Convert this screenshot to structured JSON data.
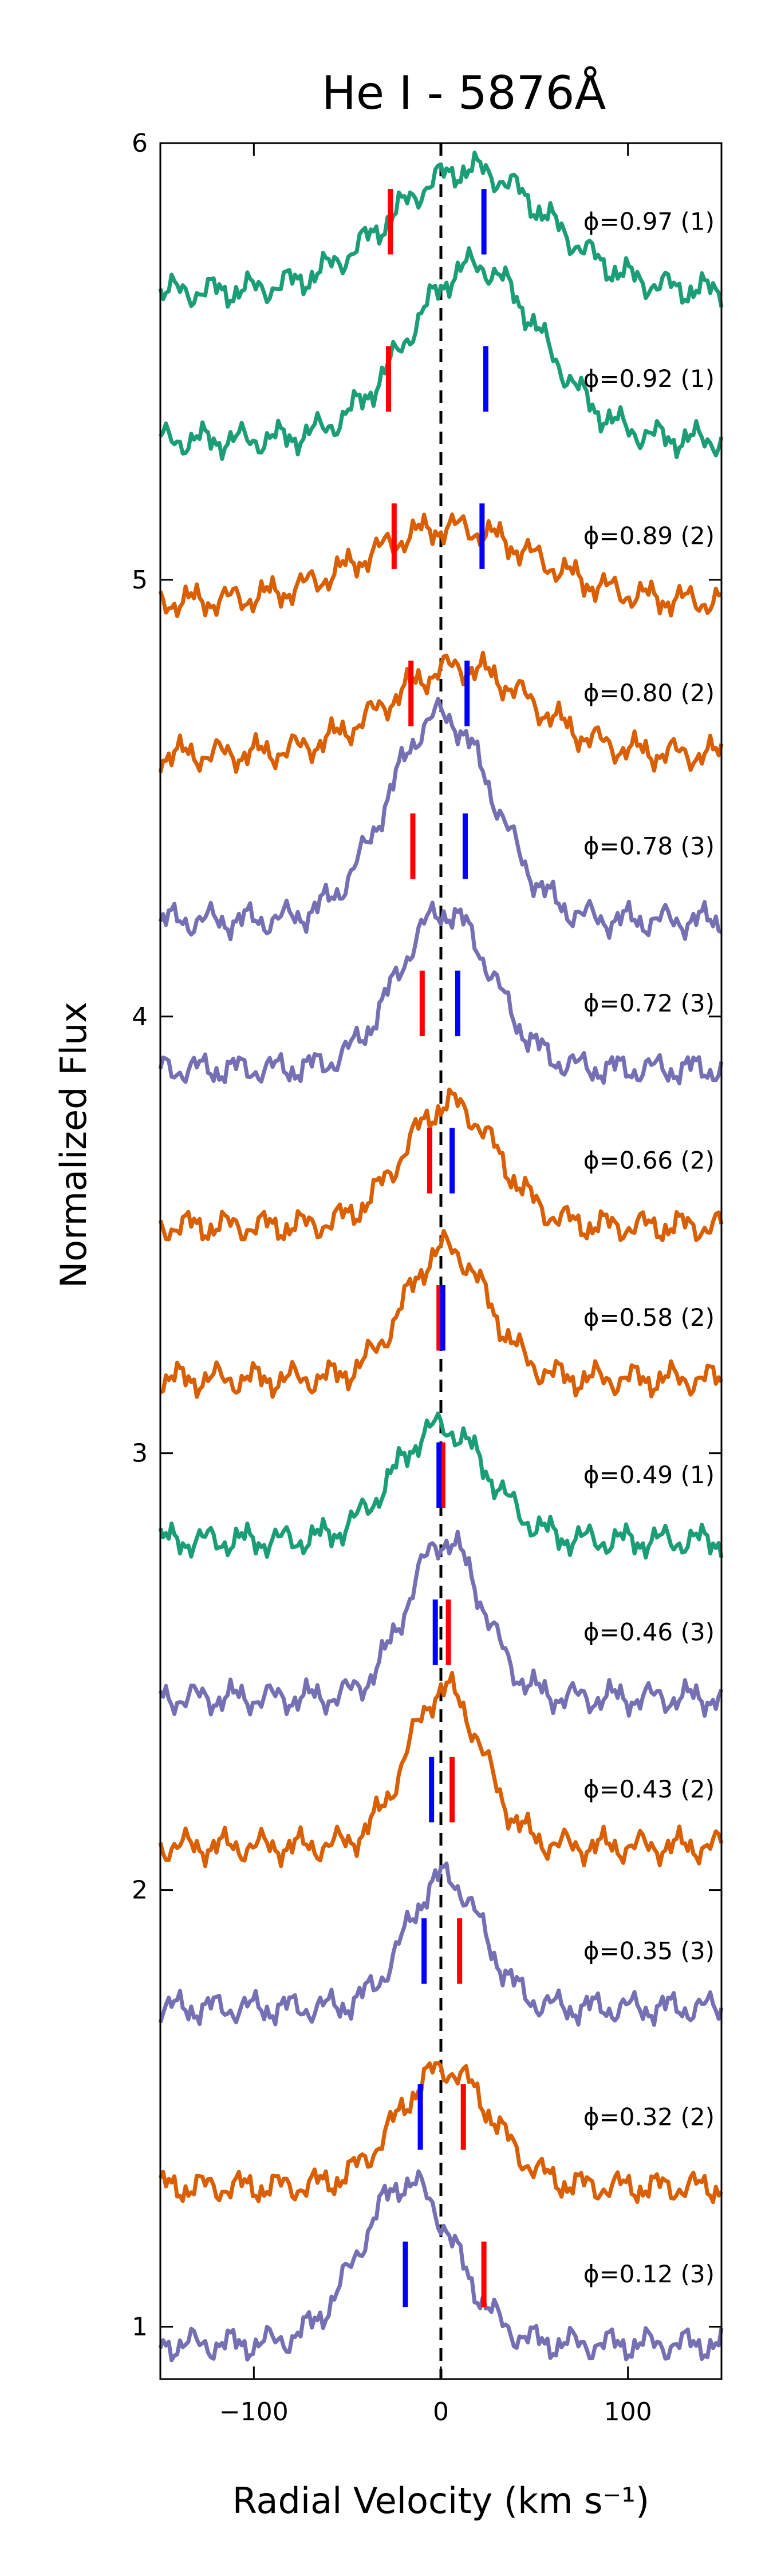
{
  "chart_data": {
    "type": "line",
    "title": "He I - 5876Å",
    "xlabel": "Radial Velocity (km s⁻¹)",
    "ylabel": "Normalized Flux",
    "xlim": [
      -150,
      150
    ],
    "ylim": [
      0.88,
      6.0
    ],
    "xticks": [
      -100,
      0,
      100
    ],
    "xtick_labels": [
      "−100",
      "0",
      "100"
    ],
    "yticks": [
      1,
      2,
      3,
      4,
      5,
      6
    ],
    "ytick_labels": [
      "1",
      "2",
      "3",
      "4",
      "5",
      "6"
    ],
    "grid": false,
    "legend": "none",
    "reference_line": {
      "x": 0,
      "style": "dashed"
    },
    "colors": {
      "1": "#1b9e77",
      "2": "#d95f02",
      "3": "#7570b3",
      "red_mark": "#ff0000",
      "blue_mark": "#0000ff"
    },
    "series": [
      {
        "label": "ϕ=0.97 (1)",
        "group": 1,
        "baseline": 5.66,
        "peak": 0.28,
        "peak_v": 15,
        "width": 42,
        "red_v": -27,
        "blue_v": 23,
        "mark_y": 5.82
      },
      {
        "label": "ϕ=0.92 (1)",
        "group": 1,
        "baseline": 5.32,
        "peak": 0.4,
        "peak_v": 18,
        "width": 35,
        "red_v": -28,
        "blue_v": 24,
        "mark_y": 5.46
      },
      {
        "label": "ϕ=0.89 (2)",
        "group": 2,
        "baseline": 4.95,
        "peak": 0.17,
        "peak_v": 5,
        "width": 45,
        "red_v": -25,
        "blue_v": 22,
        "mark_y": 5.1
      },
      {
        "label": "ϕ=0.80 (2)",
        "group": 2,
        "baseline": 4.6,
        "peak": 0.2,
        "peak_v": 10,
        "width": 38,
        "red_v": -16,
        "blue_v": 14,
        "mark_y": 4.74
      },
      {
        "label": "ϕ=0.78 (3)",
        "group": 3,
        "baseline": 4.22,
        "peak": 0.47,
        "peak_v": 0,
        "width": 28,
        "red_v": -15,
        "blue_v": 13,
        "mark_y": 4.39
      },
      {
        "label": "ϕ=0.72 (3)",
        "group": 3,
        "baseline": 3.88,
        "peak": 0.36,
        "peak_v": 2,
        "width": 25,
        "red_v": -10,
        "blue_v": 9,
        "mark_y": 4.03
      },
      {
        "label": "ϕ=0.66 (2)",
        "group": 2,
        "baseline": 3.52,
        "peak": 0.28,
        "peak_v": 5,
        "width": 25,
        "red_v": -6,
        "blue_v": 6,
        "mark_y": 3.67
      },
      {
        "label": "ϕ=0.58 (2)",
        "group": 2,
        "baseline": 3.17,
        "peak": 0.3,
        "peak_v": 3,
        "width": 22,
        "red_v": -1,
        "blue_v": 1,
        "mark_y": 3.31
      },
      {
        "label": "ϕ=0.49 (1)",
        "group": 1,
        "baseline": 2.8,
        "peak": 0.26,
        "peak_v": 0,
        "width": 25,
        "red_v": 1,
        "blue_v": -1,
        "mark_y": 2.95
      },
      {
        "label": "ϕ=0.46 (3)",
        "group": 3,
        "baseline": 2.44,
        "peak": 0.36,
        "peak_v": 2,
        "width": 20,
        "red_v": 4,
        "blue_v": -3,
        "mark_y": 2.59
      },
      {
        "label": "ϕ=0.43 (2)",
        "group": 2,
        "baseline": 2.1,
        "peak": 0.36,
        "peak_v": 2,
        "width": 20,
        "red_v": 6,
        "blue_v": -5,
        "mark_y": 2.23
      },
      {
        "label": "ϕ=0.35 (3)",
        "group": 3,
        "baseline": 1.73,
        "peak": 0.3,
        "peak_v": 2,
        "width": 20,
        "red_v": 10,
        "blue_v": -9,
        "mark_y": 1.86
      },
      {
        "label": "ϕ=0.32 (2)",
        "group": 2,
        "baseline": 1.32,
        "peak": 0.27,
        "peak_v": 2,
        "width": 25,
        "red_v": 12,
        "blue_v": -11,
        "mark_y": 1.48
      },
      {
        "label": "ϕ=0.12 (3)",
        "group": 3,
        "baseline": 0.96,
        "peak": 0.37,
        "peak_v": -18,
        "width": 25,
        "red_v": 23,
        "blue_v": -19,
        "mark_y": 1.12
      }
    ]
  }
}
